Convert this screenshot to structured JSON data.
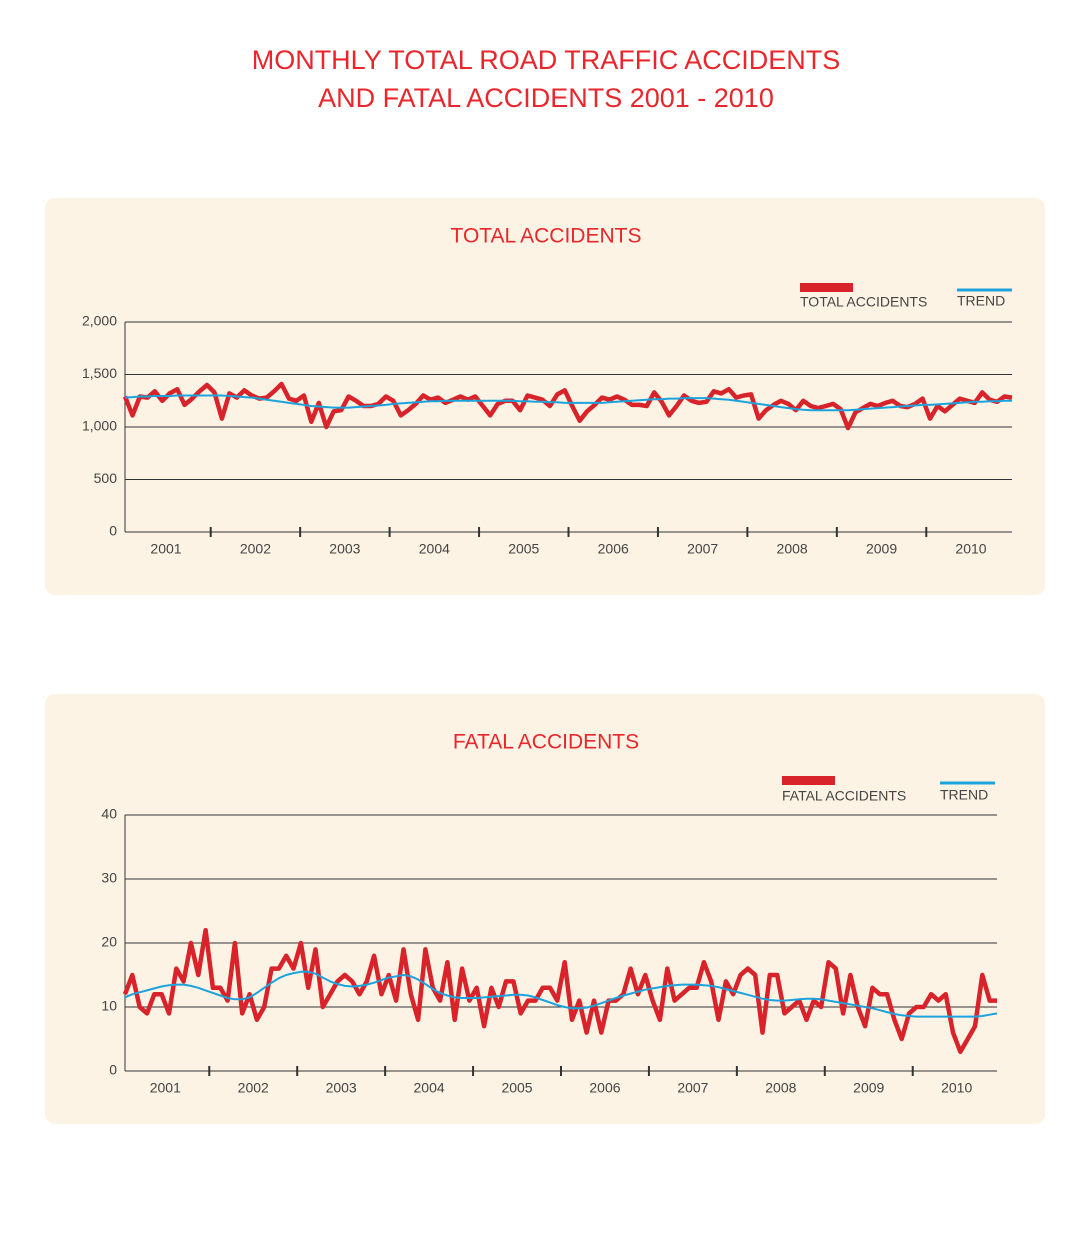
{
  "title": [
    "MONTHLY TOTAL ROAD TRAFFIC ACCIDENTS",
    "AND FATAL ACCIDENTS 2001 - 2010"
  ],
  "chart_data": [
    {
      "type": "line",
      "title": "TOTAL ACCIDENTS",
      "categories": [
        null,
        null,
        null,
        null,
        null,
        "2001",
        null,
        null,
        null,
        null,
        null,
        null,
        null,
        null,
        null,
        null,
        null,
        "2002",
        null,
        null,
        null,
        null,
        null,
        null,
        null,
        null,
        null,
        null,
        null,
        "2003",
        null,
        null,
        null,
        null,
        null,
        null,
        null,
        null,
        null,
        null,
        null,
        "2004",
        null,
        null,
        null,
        null,
        null,
        null,
        null,
        null,
        null,
        null,
        null,
        "2005",
        null,
        null,
        null,
        null,
        null,
        null,
        null,
        null,
        null,
        null,
        null,
        "2006",
        null,
        null,
        null,
        null,
        null,
        null,
        null,
        null,
        null,
        null,
        null,
        "2007",
        null,
        null,
        null,
        null,
        null,
        null,
        null,
        null,
        null,
        null,
        null,
        "2008",
        null,
        null,
        null,
        null,
        null,
        null,
        null,
        null,
        null,
        null,
        null,
        "2009",
        null,
        null,
        null,
        null,
        null,
        null,
        null,
        null,
        null,
        null,
        null,
        "2010",
        null,
        null,
        null,
        null,
        null,
        null
      ],
      "series": [
        {
          "name": "TOTAL ACCIDENTS",
          "color": "#d9232a",
          "values": [
            1290,
            1110,
            1290,
            1280,
            1340,
            1250,
            1320,
            1360,
            1210,
            1270,
            1340,
            1400,
            1330,
            1080,
            1320,
            1280,
            1350,
            1300,
            1270,
            1280,
            1340,
            1410,
            1270,
            1250,
            1300,
            1050,
            1230,
            1000,
            1150,
            1160,
            1290,
            1250,
            1200,
            1200,
            1220,
            1290,
            1250,
            1110,
            1160,
            1220,
            1300,
            1260,
            1280,
            1230,
            1260,
            1290,
            1260,
            1290,
            1200,
            1110,
            1220,
            1250,
            1250,
            1160,
            1300,
            1280,
            1260,
            1200,
            1310,
            1350,
            1200,
            1060,
            1150,
            1210,
            1280,
            1260,
            1290,
            1260,
            1210,
            1210,
            1200,
            1330,
            1240,
            1110,
            1200,
            1300,
            1250,
            1230,
            1240,
            1340,
            1320,
            1360,
            1280,
            1300,
            1310,
            1080,
            1160,
            1210,
            1250,
            1220,
            1160,
            1250,
            1200,
            1180,
            1200,
            1220,
            1170,
            990,
            1140,
            1180,
            1220,
            1200,
            1230,
            1250,
            1200,
            1190,
            1220,
            1270,
            1080,
            1200,
            1150,
            1210,
            1270,
            1250,
            1230,
            1330,
            1260,
            1240,
            1290,
            1280
          ]
        },
        {
          "name": "TREND",
          "color": "#1ba3dd",
          "values": [
            1280,
            1285,
            1290,
            1290,
            1295,
            1295,
            1295,
            1300,
            1300,
            1300,
            1300,
            1300,
            1300,
            1300,
            1295,
            1290,
            1285,
            1280,
            1270,
            1260,
            1250,
            1240,
            1230,
            1220,
            1210,
            1200,
            1195,
            1190,
            1185,
            1185,
            1185,
            1190,
            1195,
            1200,
            1205,
            1210,
            1220,
            1225,
            1230,
            1235,
            1240,
            1245,
            1245,
            1250,
            1250,
            1250,
            1250,
            1250,
            1250,
            1250,
            1250,
            1250,
            1250,
            1245,
            1245,
            1240,
            1240,
            1235,
            1235,
            1230,
            1230,
            1230,
            1230,
            1230,
            1230,
            1235,
            1240,
            1245,
            1250,
            1255,
            1260,
            1265,
            1265,
            1270,
            1270,
            1275,
            1275,
            1275,
            1275,
            1270,
            1265,
            1260,
            1250,
            1240,
            1230,
            1220,
            1210,
            1200,
            1190,
            1180,
            1170,
            1165,
            1160,
            1160,
            1160,
            1160,
            1160,
            1160,
            1165,
            1170,
            1175,
            1180,
            1185,
            1190,
            1195,
            1200,
            1205,
            1210,
            1210,
            1215,
            1220,
            1225,
            1230,
            1235,
            1240,
            1240,
            1245,
            1245,
            1250,
            1250
          ]
        }
      ],
      "ylim": [
        0,
        2000
      ],
      "yticks": [
        0,
        500,
        {
          "value": 1000,
          "label": "1,000"
        },
        {
          "value": 1500,
          "label": "1,500"
        },
        {
          "value": 2000,
          "label": "2,000"
        }
      ],
      "grid": true
    },
    {
      "type": "line",
      "title": "FATAL ACCIDENTS",
      "categories": [
        null,
        null,
        null,
        null,
        null,
        "2001",
        null,
        null,
        null,
        null,
        null,
        null,
        null,
        null,
        null,
        null,
        null,
        "2002",
        null,
        null,
        null,
        null,
        null,
        null,
        null,
        null,
        null,
        null,
        null,
        "2003",
        null,
        null,
        null,
        null,
        null,
        null,
        null,
        null,
        null,
        null,
        null,
        "2004",
        null,
        null,
        null,
        null,
        null,
        null,
        null,
        null,
        null,
        null,
        null,
        "2005",
        null,
        null,
        null,
        null,
        null,
        null,
        null,
        null,
        null,
        null,
        null,
        "2006",
        null,
        null,
        null,
        null,
        null,
        null,
        null,
        null,
        null,
        null,
        null,
        "2007",
        null,
        null,
        null,
        null,
        null,
        null,
        null,
        null,
        null,
        null,
        null,
        "2008",
        null,
        null,
        null,
        null,
        null,
        null,
        null,
        null,
        null,
        null,
        null,
        "2009",
        null,
        null,
        null,
        null,
        null,
        null,
        null,
        null,
        null,
        null,
        null,
        "2010",
        null,
        null,
        null,
        null,
        null,
        null
      ],
      "series": [
        {
          "name": "FATAL ACCIDENTS",
          "color": "#d9232a",
          "values": [
            12,
            15,
            10,
            9,
            12,
            12,
            9,
            16,
            14,
            20,
            15,
            22,
            13,
            13,
            11,
            20,
            9,
            12,
            8,
            10,
            16,
            16,
            18,
            16,
            20,
            13,
            19,
            10,
            12,
            14,
            15,
            14,
            12,
            14,
            18,
            12,
            15,
            11,
            19,
            12,
            8,
            19,
            13,
            11,
            17,
            8,
            16,
            11,
            13,
            7,
            13,
            10,
            14,
            14,
            9,
            11,
            11,
            13,
            13,
            11,
            17,
            8,
            11,
            6,
            11,
            6,
            11,
            11,
            12,
            16,
            12,
            15,
            11,
            8,
            16,
            11,
            12,
            13,
            13,
            17,
            14,
            8,
            14,
            12,
            15,
            16,
            15,
            6,
            15,
            15,
            9,
            10,
            11,
            8,
            11,
            10,
            17,
            16,
            9,
            15,
            10,
            7,
            13,
            12,
            12,
            8,
            5,
            9,
            10,
            10,
            12,
            11,
            12,
            6,
            3,
            5,
            7,
            15,
            11,
            11
          ]
        },
        {
          "name": "TREND",
          "color": "#1ba3dd",
          "values": [
            11.5,
            12,
            12.3,
            12.6,
            12.9,
            13.2,
            13.4,
            13.5,
            13.5,
            13.3,
            13,
            12.6,
            12.2,
            11.8,
            11.4,
            11.2,
            11.2,
            11.5,
            12.2,
            13,
            13.8,
            14.5,
            15,
            15.3,
            15.5,
            15.5,
            15.2,
            14.6,
            14,
            13.6,
            13.3,
            13.2,
            13.3,
            13.5,
            13.8,
            14.2,
            14.6,
            14.8,
            15,
            14.8,
            14.3,
            13.6,
            12.8,
            12.2,
            11.8,
            11.5,
            11.4,
            11.4,
            11.4,
            11.5,
            11.6,
            11.7,
            11.8,
            11.9,
            11.9,
            11.8,
            11.5,
            11.1,
            10.7,
            10.3,
            10,
            9.8,
            9.8,
            9.9,
            10.2,
            10.6,
            11,
            11.4,
            11.8,
            12.1,
            12.4,
            12.7,
            12.9,
            13.1,
            13.3,
            13.4,
            13.5,
            13.5,
            13.5,
            13.4,
            13.3,
            13.1,
            12.8,
            12.5,
            12.2,
            11.9,
            11.6,
            11.3,
            11.1,
            11,
            11,
            11.1,
            11.2,
            11.3,
            11.3,
            11.2,
            11,
            10.8,
            10.6,
            10.4,
            10.2,
            10,
            9.8,
            9.5,
            9.2,
            8.9,
            8.7,
            8.6,
            8.5,
            8.5,
            8.5,
            8.5,
            8.5,
            8.5,
            8.5,
            8.5,
            8.5,
            8.6,
            8.8,
            9
          ]
        }
      ],
      "ylim": [
        0,
        40
      ],
      "yticks": [
        0,
        10,
        20,
        30,
        40
      ],
      "grid": true
    }
  ]
}
